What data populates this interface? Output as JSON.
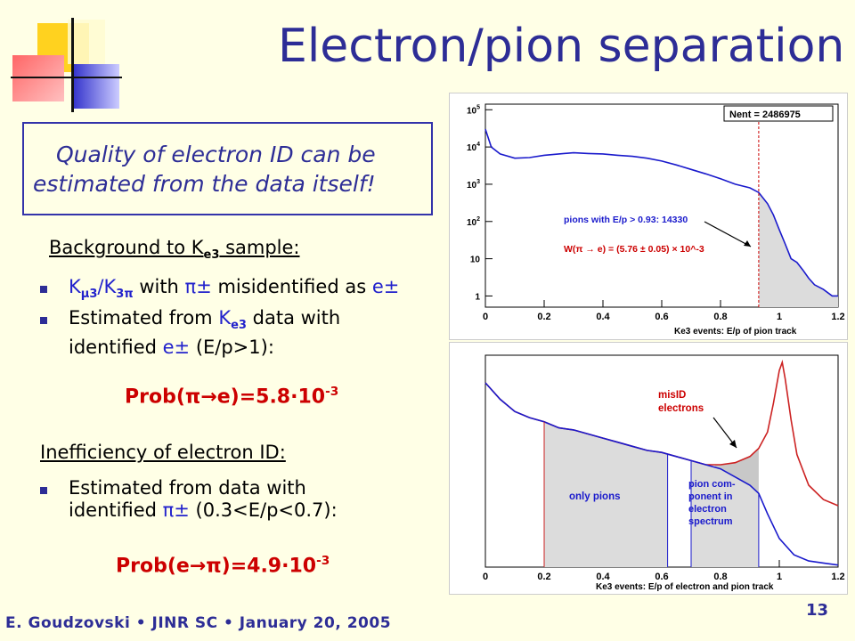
{
  "slide": {
    "title": "Electron/pion separation",
    "callout_line1": "Quality of electron ID can be",
    "callout_line2": "estimated from the data itself!",
    "bg_heading_pre": "Background to K",
    "bg_heading_sub": "e3",
    "bg_heading_post": " sample:",
    "bullet1_k1": "K",
    "bullet1_sub1": "μ3",
    "bullet1_k2": "/K",
    "bullet1_sub2": "3π",
    "bullet1_with": " with ",
    "bullet1_pi": "π±",
    "bullet1_mis": " misidentified as ",
    "bullet1_e": "e±",
    "bullet2_a": "Estimated from ",
    "bullet2_k": "K",
    "bullet2_sub": "e3",
    "bullet2_b": " data with",
    "bullet2_line2_a": "identified ",
    "bullet2_line2_e": "e±",
    "bullet2_line2_b": " (E/p>1):",
    "prob1_base": "Prob(π→e)=5.8·10",
    "prob1_exp": "-3",
    "ineff_heading": "Inefficiency of electron ID:",
    "bullet3_line1": "Estimated from data with",
    "bullet3_line2_a": "identified ",
    "bullet3_line2_pi": "π±",
    "bullet3_line2_b": " (0.3<E/p<0.7):",
    "prob2_base": "Prob(e→π)=4.9·10",
    "prob2_exp": "-3",
    "footer": "E. Goudzovski • JINR SC • January 20, 2005",
    "page_number": "13"
  },
  "chart_data": [
    {
      "type": "area",
      "xlabel": "Ke3 events: E/p of pion track",
      "xlim": [
        0,
        1.2
      ],
      "ylim": [
        1,
        100000
      ],
      "yscale": "log",
      "x_ticks": [
        "0",
        "0.2",
        "0.4",
        "0.6",
        "0.8",
        "1",
        "1.2"
      ],
      "y_ticks": [
        "1",
        "10",
        "10^2",
        "10^3",
        "10^4",
        "10^5"
      ],
      "stats_box": "Nent = 2486975",
      "annotation_blue": "pions with E/p > 0.93: 14330",
      "annotation_red": "W(π → e) = (5.76 ± 0.05) × 10^-3",
      "cut": 0.93,
      "series": [
        {
          "color": "#1a1acc",
          "x": [
            0,
            0.02,
            0.05,
            0.1,
            0.15,
            0.2,
            0.25,
            0.3,
            0.35,
            0.4,
            0.45,
            0.5,
            0.55,
            0.6,
            0.65,
            0.7,
            0.75,
            0.8,
            0.85,
            0.9,
            0.93,
            0.96,
            0.98,
            1.0,
            1.02,
            1.04,
            1.06,
            1.08,
            1.1,
            1.12,
            1.15,
            1.18,
            1.2
          ],
          "y": [
            30000,
            10000,
            6500,
            5000,
            5200,
            6000,
            6500,
            7000,
            6700,
            6500,
            6000,
            5600,
            5000,
            4200,
            3300,
            2500,
            1900,
            1400,
            1000,
            800,
            600,
            300,
            150,
            60,
            25,
            10,
            8,
            5,
            3,
            2,
            1.5,
            1,
            1
          ]
        }
      ]
    },
    {
      "type": "area",
      "xlabel": "Ke3 events: E/p of electron and pion track",
      "xlim": [
        0,
        1.2
      ],
      "x_ticks": [
        "0",
        "0.2",
        "0.4",
        "0.6",
        "0.8",
        "1",
        "1.2"
      ],
      "annotation_red": "misID electrons",
      "region_labels": [
        "only pions",
        "pion com- ponent in electron spectrum"
      ],
      "regions": [
        [
          0.2,
          0.62
        ],
        [
          0.7,
          0.93
        ]
      ],
      "series": [
        {
          "color": "#1a1acc",
          "x": [
            0.0,
            0.05,
            0.1,
            0.15,
            0.2,
            0.25,
            0.3,
            0.35,
            0.4,
            0.45,
            0.5,
            0.55,
            0.6,
            0.65,
            0.7,
            0.75,
            0.8,
            0.85,
            0.9,
            0.93,
            0.96,
            1.0,
            1.05,
            1.1,
            1.15,
            1.2
          ],
          "y": [
            0.9,
            0.82,
            0.76,
            0.73,
            0.71,
            0.68,
            0.67,
            0.65,
            0.63,
            0.61,
            0.59,
            0.57,
            0.56,
            0.54,
            0.52,
            0.5,
            0.48,
            0.44,
            0.4,
            0.36,
            0.26,
            0.14,
            0.06,
            0.03,
            0.02,
            0.01
          ]
        },
        {
          "color": "#cc2222",
          "x": [
            0.0,
            0.05,
            0.1,
            0.15,
            0.2,
            0.25,
            0.3,
            0.35,
            0.4,
            0.45,
            0.5,
            0.55,
            0.6,
            0.65,
            0.7,
            0.75,
            0.8,
            0.85,
            0.9,
            0.93,
            0.96,
            0.98,
            1.0,
            1.01,
            1.02,
            1.04,
            1.06,
            1.1,
            1.15,
            1.2
          ],
          "y": [
            0.9,
            0.82,
            0.76,
            0.73,
            0.71,
            0.68,
            0.67,
            0.65,
            0.63,
            0.61,
            0.59,
            0.57,
            0.56,
            0.54,
            0.52,
            0.5,
            0.5,
            0.51,
            0.54,
            0.58,
            0.66,
            0.8,
            0.96,
            1.0,
            0.92,
            0.72,
            0.55,
            0.4,
            0.33,
            0.3
          ]
        }
      ]
    }
  ]
}
